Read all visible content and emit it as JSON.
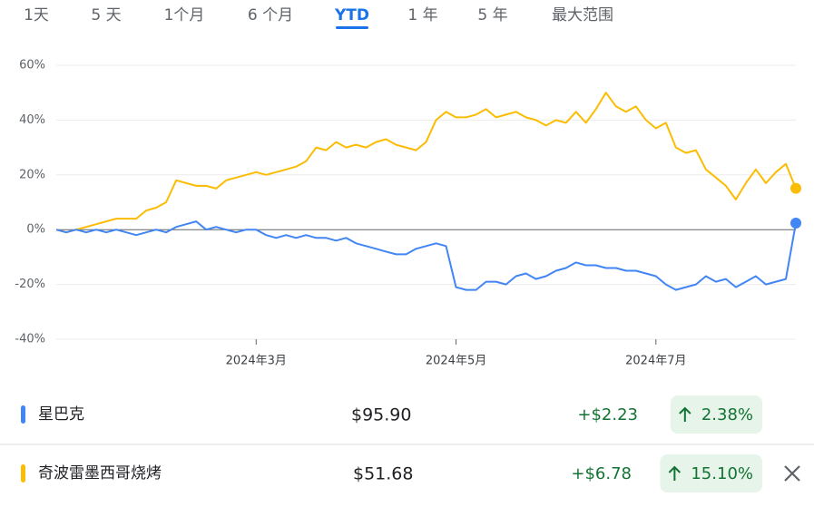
{
  "tabs": [
    "1天",
    "5 天",
    "1个月",
    "6 个月",
    "YTD",
    "1 年",
    "5 年",
    "最大范围"
  ],
  "active_tab": 4,
  "chart_data": {
    "type": "line",
    "categories": [
      null,
      null,
      null,
      null,
      null,
      null,
      null,
      null,
      null,
      null,
      null,
      null,
      null,
      null,
      null,
      null,
      null,
      null,
      null,
      null,
      "2024年3月",
      null,
      null,
      null,
      null,
      null,
      null,
      null,
      null,
      null,
      null,
      null,
      null,
      null,
      null,
      null,
      null,
      null,
      null,
      null,
      "2024年5月",
      null,
      null,
      null,
      null,
      null,
      null,
      null,
      null,
      null,
      null,
      null,
      null,
      null,
      null,
      null,
      null,
      null,
      null,
      null,
      "2024年7月",
      null,
      null,
      null,
      null,
      null,
      null,
      null,
      null,
      null,
      null,
      null,
      null,
      null,
      null
    ],
    "series": [
      {
        "name": "星巴克",
        "color": "#4285f4",
        "values": [
          0,
          -1,
          0,
          -1,
          0,
          -1,
          0,
          -1,
          -2,
          -1,
          0,
          -1,
          1,
          2,
          3,
          0,
          1,
          0,
          -1,
          0,
          0,
          -2,
          -3,
          -2,
          -3,
          -2,
          -3,
          -3,
          -4,
          -3,
          -5,
          -6,
          -7,
          -8,
          -9,
          -9,
          -7,
          -6,
          -5,
          -6,
          -21,
          -22,
          -22,
          -19,
          -19,
          -20,
          -17,
          -16,
          -18,
          -17,
          -15,
          -14,
          -12,
          -13,
          -13,
          -14,
          -14,
          -15,
          -15,
          -16,
          -17,
          -20,
          -22,
          -21,
          -20,
          -17,
          -19,
          -18,
          -21,
          -19,
          -17,
          -20,
          -19,
          -18,
          2.38
        ]
      },
      {
        "name": "奇波雷墨西哥烧烤",
        "color": "#fbbc04",
        "values": [
          0,
          -1,
          0,
          1,
          2,
          3,
          4,
          4,
          4,
          7,
          8,
          10,
          18,
          17,
          16,
          16,
          15,
          18,
          19,
          20,
          21,
          20,
          21,
          22,
          23,
          25,
          30,
          29,
          32,
          30,
          31,
          30,
          32,
          33,
          31,
          30,
          29,
          32,
          40,
          43,
          41,
          41,
          42,
          44,
          41,
          42,
          43,
          41,
          40,
          38,
          40,
          39,
          43,
          39,
          44,
          50,
          45,
          43,
          45,
          40,
          37,
          39,
          30,
          28,
          29,
          22,
          19,
          16,
          11,
          17,
          22,
          17,
          21,
          24,
          15.1
        ]
      }
    ],
    "ylim": [
      -40,
      60
    ],
    "yticks": [
      {
        "value": -40,
        "label": "-40%"
      },
      {
        "value": -20,
        "label": "-20%"
      },
      {
        "value": 0,
        "label": "0%"
      },
      {
        "value": 20,
        "label": "20%"
      },
      {
        "value": 40,
        "label": "40%"
      },
      {
        "value": 60,
        "label": "60%"
      }
    ],
    "grid": true
  },
  "table": {
    "rows": [
      {
        "price": "$95.90",
        "change": "+$2.23",
        "change_pct": "2.38%"
      },
      {
        "price": "$51.68",
        "change": "+$6.78",
        "change_pct": "15.10%"
      }
    ]
  }
}
